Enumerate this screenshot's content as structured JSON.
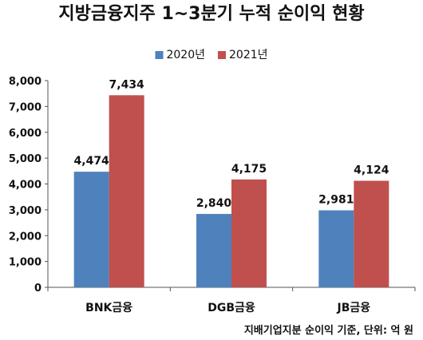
{
  "chart_data": {
    "type": "bar",
    "title": "지방금융지주 1~3분기 누적 순이익 현황",
    "categories": [
      "BNK금융",
      "DGB금융",
      "JB금융"
    ],
    "series": [
      {
        "name": "2020년",
        "color": "#4F81BD",
        "values": [
          4474,
          2840,
          2981
        ],
        "labels": [
          "4,474",
          "2,840",
          "2,981"
        ]
      },
      {
        "name": "2021년",
        "color": "#C0504D",
        "values": [
          7434,
          4175,
          4124
        ],
        "labels": [
          "7,434",
          "4,175",
          "4,124"
        ]
      }
    ],
    "ylim": [
      0,
      8000
    ],
    "yticks": [
      0,
      1000,
      2000,
      3000,
      4000,
      5000,
      6000,
      7000,
      8000
    ],
    "ytick_labels": [
      "0",
      "1,000",
      "2,000",
      "3,000",
      "4,000",
      "5,000",
      "6,000",
      "7,000",
      "8,000"
    ],
    "legend_position": "top-center",
    "grid": false,
    "source_note": "지배기업지분 순이익 기준, 단위: 억 원"
  }
}
